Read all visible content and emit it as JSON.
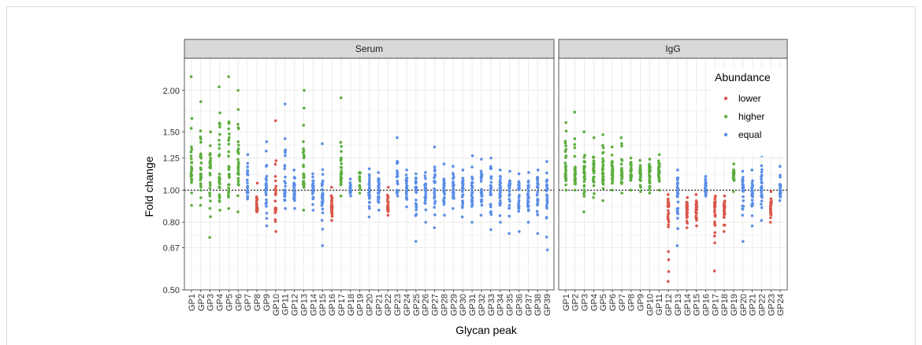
{
  "chart_data": {
    "type": "scatter",
    "xlabel": "Glycan peak",
    "ylabel": "Fold change",
    "yscale": "log",
    "ylim": [
      0.5,
      2.5
    ],
    "yticks": [
      0.5,
      0.67,
      0.8,
      1.0,
      1.25,
      1.5,
      2.0
    ],
    "ytick_labels": [
      "0.50",
      "0.67",
      "0.80",
      "1.00",
      "1.25",
      "1.50",
      "2.00"
    ],
    "reference_line": 1.0,
    "grid": true,
    "legend": {
      "title": "Abundance",
      "placement": "inside-top-right",
      "entries": [
        {
          "label": "lower",
          "color": "#d9574b"
        },
        {
          "label": "higher",
          "color": "#5cae3e"
        },
        {
          "label": "equal",
          "color": "#5b8ee6"
        }
      ]
    },
    "panels": [
      {
        "strip": "Serum",
        "categories": [
          "GP1",
          "GP2",
          "GP3",
          "GP4",
          "GP5",
          "GP6",
          "GP7",
          "GP8",
          "GP9",
          "GP10",
          "GP11",
          "GP12",
          "GP13",
          "GP14",
          "GP15",
          "GP16",
          "GP17",
          "GP18",
          "GP19",
          "GP20",
          "GP21",
          "GP22",
          "GP23",
          "GP24",
          "GP25",
          "GP26",
          "GP27",
          "GP28",
          "GP29",
          "GP30",
          "GP31",
          "GP32",
          "GP33",
          "GP34",
          "GP35",
          "GP36",
          "GP37",
          "GP38",
          "GP39"
        ],
        "groups": [
          {
            "abundance": "higher",
            "ymin": 0.9,
            "ymax": 2.2
          },
          {
            "abundance": "higher",
            "ymin": 0.9,
            "ymax": 1.85
          },
          {
            "abundance": "higher",
            "ymin": 0.72,
            "ymax": 1.5
          },
          {
            "abundance": "higher",
            "ymin": 0.87,
            "ymax": 2.05
          },
          {
            "abundance": "higher",
            "ymin": 0.88,
            "ymax": 2.2
          },
          {
            "abundance": "higher",
            "ymin": 0.86,
            "ymax": 2.0
          },
          {
            "abundance": "equal",
            "ymin": 0.94,
            "ymax": 1.28
          },
          {
            "abundance": "lower",
            "ymin": 0.86,
            "ymax": 1.05
          },
          {
            "abundance": "equal",
            "ymin": 0.78,
            "ymax": 1.4
          },
          {
            "abundance": "lower",
            "ymin": 0.75,
            "ymax": 1.62
          },
          {
            "abundance": "equal",
            "ymin": 0.88,
            "ymax": 1.82
          },
          {
            "abundance": "equal",
            "ymin": 0.88,
            "ymax": 1.15
          },
          {
            "abundance": "higher",
            "ymin": 0.87,
            "ymax": 2.0
          },
          {
            "abundance": "equal",
            "ymin": 0.87,
            "ymax": 1.12
          },
          {
            "abundance": "equal",
            "ymin": 0.68,
            "ymax": 1.38
          },
          {
            "abundance": "lower",
            "ymin": 0.81,
            "ymax": 1.02
          },
          {
            "abundance": "higher",
            "ymin": 0.96,
            "ymax": 1.9
          },
          {
            "abundance": "equal",
            "ymin": 0.96,
            "ymax": 1.08
          },
          {
            "abundance": "higher",
            "ymin": 0.98,
            "ymax": 1.13
          },
          {
            "abundance": "equal",
            "ymin": 0.83,
            "ymax": 1.16
          },
          {
            "abundance": "equal",
            "ymin": 0.87,
            "ymax": 1.13
          },
          {
            "abundance": "lower",
            "ymin": 0.84,
            "ymax": 1.02
          },
          {
            "abundance": "equal",
            "ymin": 0.96,
            "ymax": 1.44
          },
          {
            "abundance": "equal",
            "ymin": 0.89,
            "ymax": 1.15
          },
          {
            "abundance": "equal",
            "ymin": 0.7,
            "ymax": 1.12
          },
          {
            "abundance": "equal",
            "ymin": 0.8,
            "ymax": 1.13
          },
          {
            "abundance": "equal",
            "ymin": 0.77,
            "ymax": 1.35
          },
          {
            "abundance": "equal",
            "ymin": 0.84,
            "ymax": 1.2
          },
          {
            "abundance": "equal",
            "ymin": 0.88,
            "ymax": 1.18
          },
          {
            "abundance": "equal",
            "ymin": 0.83,
            "ymax": 1.15
          },
          {
            "abundance": "equal",
            "ymin": 0.8,
            "ymax": 1.27
          },
          {
            "abundance": "equal",
            "ymin": 0.84,
            "ymax": 1.24
          },
          {
            "abundance": "equal",
            "ymin": 0.76,
            "ymax": 1.25
          },
          {
            "abundance": "equal",
            "ymin": 0.8,
            "ymax": 1.15
          },
          {
            "abundance": "equal",
            "ymin": 0.74,
            "ymax": 1.14
          },
          {
            "abundance": "equal",
            "ymin": 0.75,
            "ymax": 1.12
          },
          {
            "abundance": "equal",
            "ymin": 0.8,
            "ymax": 1.13
          },
          {
            "abundance": "equal",
            "ymin": 0.74,
            "ymax": 1.15
          },
          {
            "abundance": "equal",
            "ymin": 0.66,
            "ymax": 1.22
          }
        ]
      },
      {
        "strip": "IgG",
        "categories": [
          "GP1",
          "GP2",
          "GP3",
          "GP4",
          "GP5",
          "GP6",
          "GP7",
          "GP8",
          "GP9",
          "GP10",
          "GP11",
          "GP12",
          "GP13",
          "GP14",
          "GP15",
          "GP16",
          "GP17",
          "GP18",
          "GP19",
          "GP20",
          "GP21",
          "GP22",
          "GP23",
          "GP24"
        ],
        "groups": [
          {
            "abundance": "higher",
            "ymin": 1.0,
            "ymax": 1.6
          },
          {
            "abundance": "higher",
            "ymin": 1.0,
            "ymax": 1.72
          },
          {
            "abundance": "higher",
            "ymin": 0.86,
            "ymax": 1.5
          },
          {
            "abundance": "higher",
            "ymin": 0.95,
            "ymax": 1.44
          },
          {
            "abundance": "higher",
            "ymin": 0.93,
            "ymax": 1.47
          },
          {
            "abundance": "higher",
            "ymin": 1.0,
            "ymax": 1.35
          },
          {
            "abundance": "higher",
            "ymin": 0.98,
            "ymax": 1.44
          },
          {
            "abundance": "higher",
            "ymin": 1.0,
            "ymax": 1.25
          },
          {
            "abundance": "higher",
            "ymin": 0.99,
            "ymax": 1.23
          },
          {
            "abundance": "higher",
            "ymin": 0.98,
            "ymax": 1.24
          },
          {
            "abundance": "higher",
            "ymin": 1.0,
            "ymax": 1.28
          },
          {
            "abundance": "lower",
            "ymin": 0.53,
            "ymax": 0.97
          },
          {
            "abundance": "equal",
            "ymin": 0.68,
            "ymax": 1.15
          },
          {
            "abundance": "lower",
            "ymin": 0.77,
            "ymax": 0.95
          },
          {
            "abundance": "lower",
            "ymin": 0.78,
            "ymax": 0.97
          },
          {
            "abundance": "equal",
            "ymin": 0.96,
            "ymax": 1.1
          },
          {
            "abundance": "lower",
            "ymin": 0.57,
            "ymax": 0.96
          },
          {
            "abundance": "lower",
            "ymin": 0.75,
            "ymax": 0.96
          },
          {
            "abundance": "higher",
            "ymin": 0.99,
            "ymax": 1.2
          },
          {
            "abundance": "equal",
            "ymin": 0.7,
            "ymax": 1.14
          },
          {
            "abundance": "equal",
            "ymin": 0.78,
            "ymax": 1.15
          },
          {
            "abundance": "equal",
            "ymin": 0.81,
            "ymax": 1.27
          },
          {
            "abundance": "lower",
            "ymin": 0.8,
            "ymax": 0.99
          },
          {
            "abundance": "equal",
            "ymin": 0.93,
            "ymax": 1.18
          }
        ]
      }
    ]
  },
  "colors": {
    "lower": "#d9574b",
    "higher": "#5cae3e",
    "equal": "#5b8ee6",
    "strip_bg": "#d9d9d9",
    "grid": "#ebebeb"
  }
}
